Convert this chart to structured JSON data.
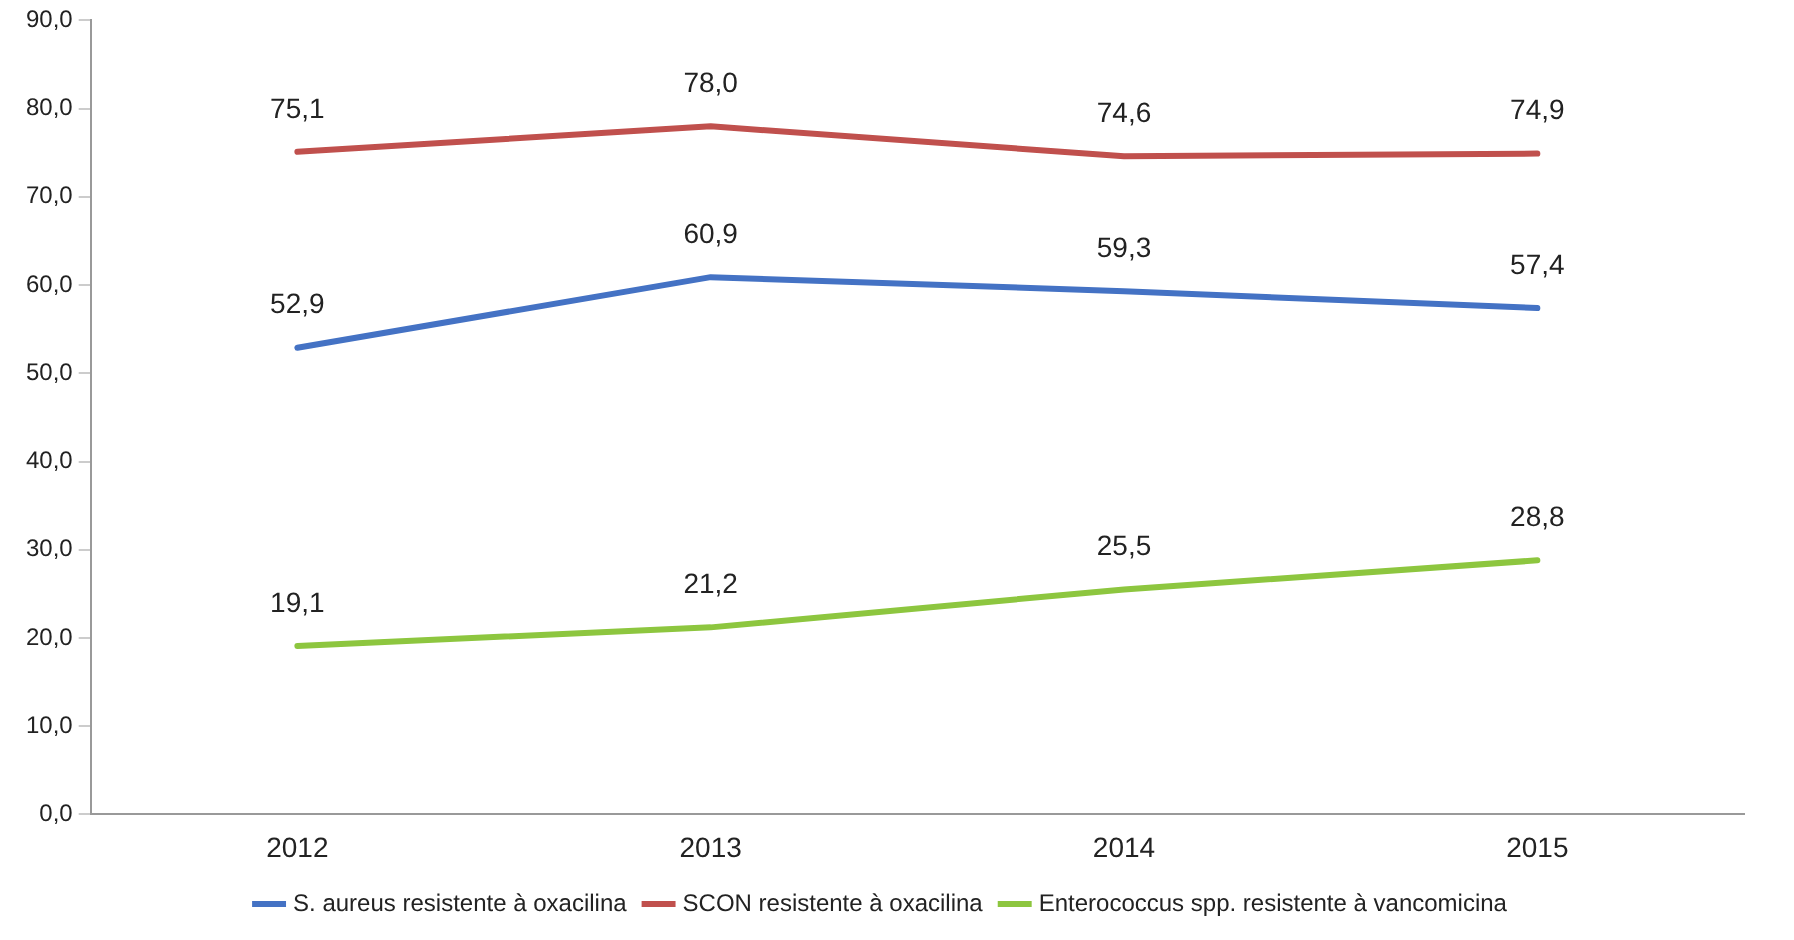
{
  "chart_data": {
    "type": "line",
    "categories": [
      "2012",
      "2013",
      "2014",
      "2015"
    ],
    "series": [
      {
        "name": "S. aureus resistente à oxacilina",
        "color": "#4472c4",
        "values": [
          52.9,
          60.9,
          59.3,
          57.4
        ],
        "value_labels": [
          "52,9",
          "60,9",
          "59,3",
          "57,4"
        ]
      },
      {
        "name": "SCON resistente à oxacilina",
        "color": "#c0504d",
        "values": [
          75.1,
          78.0,
          74.6,
          74.9
        ],
        "value_labels": [
          "75,1",
          "78,0",
          "74,6",
          "74,9"
        ]
      },
      {
        "name": "Enterococcus spp. resistente à vancomicina",
        "color": "#8dc63f",
        "values": [
          19.1,
          21.2,
          25.5,
          28.8
        ],
        "value_labels": [
          "19,1",
          "21,2",
          "25,5",
          "28,8"
        ]
      }
    ],
    "ylim": [
      0,
      90
    ],
    "yticks": [
      {
        "value": 0,
        "label": "0,0"
      },
      {
        "value": 10,
        "label": "10,0"
      },
      {
        "value": 20,
        "label": "20,0"
      },
      {
        "value": 30,
        "label": "30,0"
      },
      {
        "value": 40,
        "label": "40,0"
      },
      {
        "value": 50,
        "label": "50,0"
      },
      {
        "value": 60,
        "label": "60,0"
      },
      {
        "value": 70,
        "label": "70,0"
      },
      {
        "value": 80,
        "label": "80,0"
      },
      {
        "value": 90,
        "label": "90,0"
      }
    ],
    "grid": false,
    "legend": "bottom",
    "marker": "none",
    "line_style": "solid"
  }
}
